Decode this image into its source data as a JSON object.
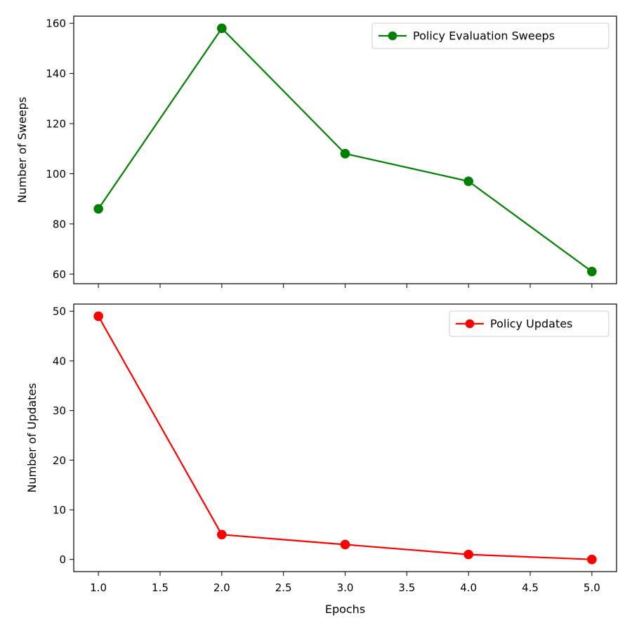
{
  "chart_data": [
    {
      "type": "line",
      "title": "",
      "xlabel": "",
      "ylabel": "Number of Sweeps",
      "xlim": [
        0.8,
        5.2
      ],
      "ylim": [
        56.15,
        162.85
      ],
      "x_ticks": [
        1.0,
        1.5,
        2.0,
        2.5,
        3.0,
        3.5,
        4.0,
        4.5,
        5.0
      ],
      "x_tick_labels_shown": false,
      "y_ticks": [
        60,
        80,
        100,
        120,
        140,
        160
      ],
      "grid": false,
      "legend_position": "top-right",
      "series": [
        {
          "name": "Policy Evaluation Sweeps",
          "color": "#008000",
          "marker": "circle",
          "x": [
            1.0,
            2.0,
            3.0,
            4.0,
            5.0
          ],
          "y": [
            86,
            158,
            108,
            97,
            61
          ]
        }
      ]
    },
    {
      "type": "line",
      "title": "",
      "xlabel": "Epochs",
      "ylabel": "Number of Updates",
      "xlim": [
        0.8,
        5.2
      ],
      "ylim": [
        -2.45,
        51.45
      ],
      "x_ticks": [
        1.0,
        1.5,
        2.0,
        2.5,
        3.0,
        3.5,
        4.0,
        4.5,
        5.0
      ],
      "x_tick_labels_shown": true,
      "y_ticks": [
        0,
        10,
        20,
        30,
        40,
        50
      ],
      "grid": false,
      "legend_position": "top-right",
      "series": [
        {
          "name": "Policy Updates",
          "color": "#ff0000",
          "marker": "circle",
          "x": [
            1.0,
            2.0,
            3.0,
            4.0,
            5.0
          ],
          "y": [
            49,
            5,
            3,
            1,
            0
          ]
        }
      ]
    }
  ]
}
